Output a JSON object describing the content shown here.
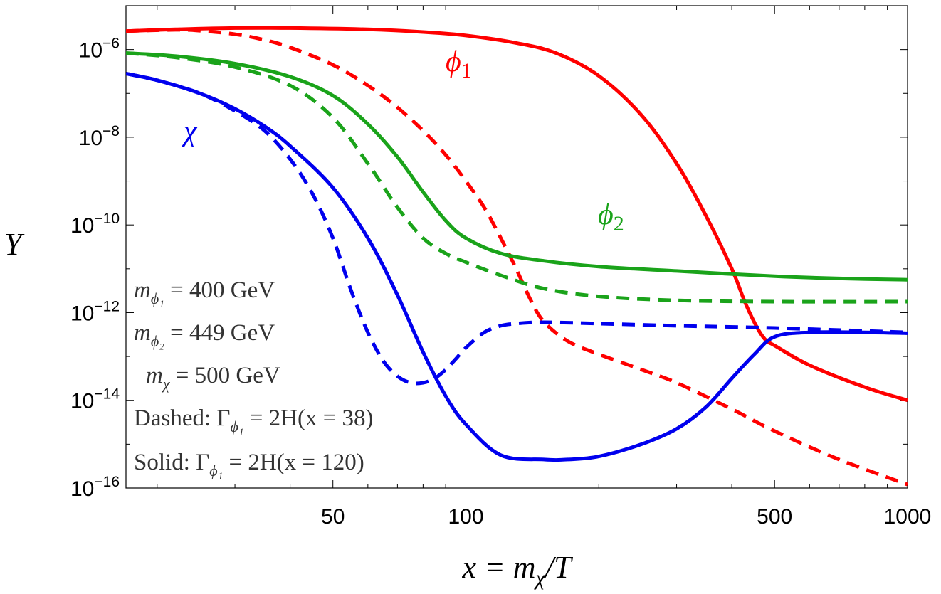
{
  "chart_data": {
    "type": "line",
    "x_scale": "log",
    "y_scale": "log",
    "xlim": [
      17,
      1000
    ],
    "ylim": [
      1e-16,
      1e-05
    ],
    "grid": false,
    "x_ticks": [
      {
        "value": 50,
        "label": "50"
      },
      {
        "value": 100,
        "label": "100"
      },
      {
        "value": 500,
        "label": "500"
      },
      {
        "value": 1000,
        "label": "1000"
      }
    ],
    "y_ticks": [
      {
        "value": -6,
        "base": "10",
        "exp": "−6"
      },
      {
        "value": -8,
        "base": "10",
        "exp": "−8"
      },
      {
        "value": -10,
        "base": "10",
        "exp": "−10"
      },
      {
        "value": -12,
        "base": "10",
        "exp": "−12"
      },
      {
        "value": -14,
        "base": "10",
        "exp": "−14"
      },
      {
        "value": -16,
        "base": "10",
        "exp": "−16"
      }
    ],
    "xlabel": {
      "main": "x = m",
      "sub": "χ",
      "tail": "/T"
    },
    "ylabel": "Y",
    "series_labels": [
      {
        "series": "phi1",
        "main": "ϕ",
        "sub": "1",
        "color": "#ff0000"
      },
      {
        "series": "phi2",
        "main": "ϕ",
        "sub": "2",
        "color": "#1aa31a"
      },
      {
        "series": "chi",
        "main": "χ",
        "sub": "",
        "color": "#0000ee"
      }
    ],
    "annotations": [
      {
        "main": "m",
        "sub": "ϕ₁",
        "text": " = 400 GeV"
      },
      {
        "main": "m",
        "sub": "ϕ₂",
        "text": " = 449 GeV"
      },
      {
        "main": "m",
        "sub": "χ",
        "text": " = 500 GeV"
      },
      {
        "main": "Dashed: Γ",
        "sub": "ϕ₁",
        "text": " = 2H(x = 38)"
      },
      {
        "main": "Solid: Γ",
        "sub": "ϕ₁",
        "text": " = 2H(x = 120)"
      }
    ],
    "series": [
      {
        "id": "phi1_solid",
        "color": "#ff0000",
        "dashed": false,
        "x": [
          17,
          22,
          30,
          40,
          60,
          80,
          100,
          130,
          160,
          200,
          250,
          300,
          350,
          400,
          430,
          460,
          480,
          500,
          600,
          800,
          1000
        ],
        "log10y": [
          -5.58,
          -5.54,
          -5.51,
          -5.51,
          -5.54,
          -5.6,
          -5.68,
          -5.85,
          -6.08,
          -6.6,
          -7.5,
          -8.6,
          -9.8,
          -11.0,
          -11.8,
          -12.4,
          -12.65,
          -12.75,
          -13.2,
          -13.7,
          -14.0
        ]
      },
      {
        "id": "phi1_dashed",
        "color": "#ff0000",
        "dashed": true,
        "x": [
          17,
          22,
          25,
          30,
          35,
          40,
          50,
          60,
          70,
          80,
          90,
          100,
          110,
          120,
          130,
          140,
          150,
          170,
          200,
          250,
          300,
          400,
          500,
          700,
          1000
        ],
        "log10y": [
          -5.58,
          -5.55,
          -5.57,
          -5.65,
          -5.78,
          -5.95,
          -6.35,
          -6.82,
          -7.32,
          -7.85,
          -8.4,
          -9.0,
          -9.6,
          -10.3,
          -11.0,
          -11.7,
          -12.2,
          -12.65,
          -12.95,
          -13.3,
          -13.6,
          -14.2,
          -14.7,
          -15.35,
          -15.92
        ]
      },
      {
        "id": "phi2_solid",
        "color": "#1aa31a",
        "dashed": false,
        "x": [
          17,
          22,
          30,
          40,
          50,
          60,
          70,
          80,
          90,
          100,
          120,
          150,
          200,
          300,
          500,
          700,
          1000
        ],
        "log10y": [
          -6.08,
          -6.15,
          -6.32,
          -6.62,
          -7.05,
          -7.7,
          -8.45,
          -9.25,
          -9.9,
          -10.3,
          -10.65,
          -10.82,
          -10.95,
          -11.05,
          -11.17,
          -11.22,
          -11.25
        ]
      },
      {
        "id": "phi2_dashed",
        "color": "#1aa31a",
        "dashed": true,
        "x": [
          17,
          22,
          30,
          40,
          50,
          60,
          70,
          80,
          90,
          100,
          120,
          150,
          200,
          300,
          500,
          1000
        ],
        "log10y": [
          -6.08,
          -6.18,
          -6.4,
          -6.82,
          -7.55,
          -8.6,
          -9.6,
          -10.3,
          -10.65,
          -10.85,
          -11.15,
          -11.45,
          -11.63,
          -11.72,
          -11.75,
          -11.75
        ]
      },
      {
        "id": "chi_solid",
        "color": "#0000ee",
        "dashed": false,
        "x": [
          17,
          20,
          25,
          30,
          35,
          40,
          50,
          60,
          70,
          80,
          90,
          100,
          120,
          150,
          170,
          200,
          250,
          300,
          350,
          400,
          450,
          500,
          600,
          800,
          1000
        ],
        "log10y": [
          -6.55,
          -6.7,
          -7.0,
          -7.35,
          -7.75,
          -8.2,
          -9.15,
          -10.3,
          -11.6,
          -12.9,
          -13.9,
          -14.55,
          -15.25,
          -15.35,
          -15.35,
          -15.28,
          -15.0,
          -14.65,
          -14.15,
          -13.5,
          -12.95,
          -12.55,
          -12.45,
          -12.45,
          -12.47
        ]
      },
      {
        "id": "chi_dashed",
        "color": "#0000ee",
        "dashed": true,
        "x": [
          17,
          20,
          25,
          30,
          35,
          40,
          45,
          50,
          55,
          60,
          65,
          70,
          75,
          80,
          85,
          90,
          95,
          100,
          110,
          120,
          130,
          150,
          200,
          300,
          500,
          1000
        ],
        "log10y": [
          -6.55,
          -6.7,
          -7.0,
          -7.4,
          -7.85,
          -8.5,
          -9.3,
          -10.3,
          -11.5,
          -12.45,
          -13.1,
          -13.45,
          -13.6,
          -13.6,
          -13.5,
          -13.3,
          -13.05,
          -12.8,
          -12.45,
          -12.3,
          -12.25,
          -12.22,
          -12.25,
          -12.3,
          -12.35,
          -12.45
        ]
      }
    ]
  }
}
